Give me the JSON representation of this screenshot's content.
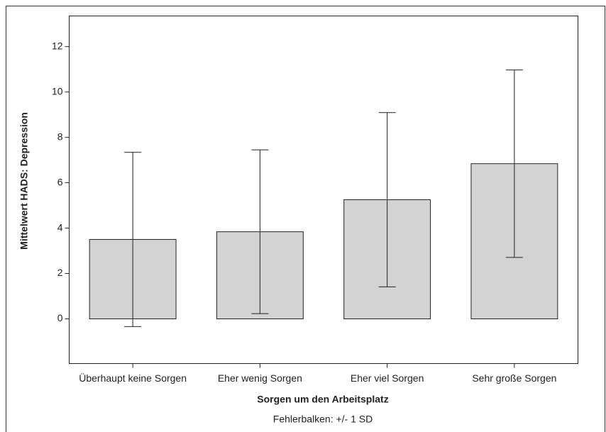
{
  "chart_data": {
    "type": "bar",
    "y_label": "Mittelwert HADS: Depression",
    "x_label": "Sorgen um den Arbeitsplatz",
    "note": "Fehlerbalken: +/- 1 SD",
    "categories": [
      "Überhaupt keine Sorgen",
      "Eher wenig Sorgen",
      "Eher viel Sorgen",
      "Sehr große Sorgen"
    ],
    "values": [
      3.5,
      3.84,
      5.25,
      6.84
    ],
    "errors": [
      3.84,
      3.61,
      3.84,
      4.13
    ],
    "color": "#d3d3d3",
    "ylim": [
      -1.97,
      13.35
    ],
    "yticks": [
      0,
      2,
      4,
      6,
      8,
      10,
      12
    ]
  }
}
